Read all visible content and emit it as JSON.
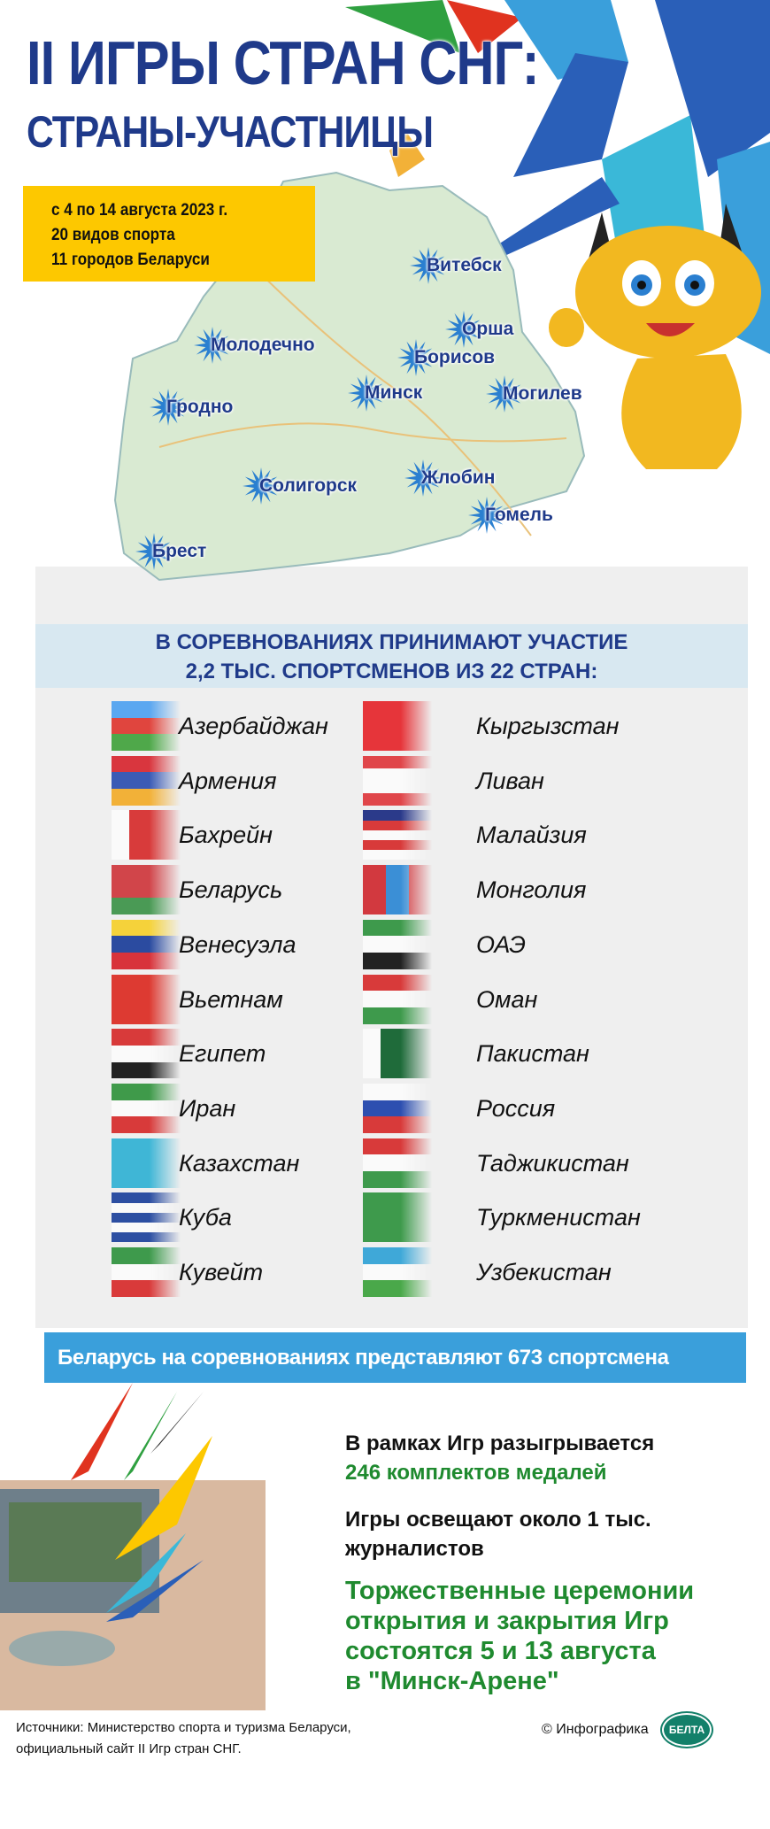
{
  "header": {
    "title_line1": "II ИГРЫ СТРАН СНГ:",
    "title_line2": "СТРАНЫ-УЧАСТНИЦЫ"
  },
  "info_box": {
    "dates": "с 4 по 14 августа 2023 г.",
    "sports": "20 видов спорта",
    "cities": "11 городов Беларуси"
  },
  "map": {
    "cities": [
      "Витебск",
      "Орша",
      "Молодечно",
      "Борисов",
      "Минск",
      "Могилев",
      "Гродно",
      "Солигорск",
      "Жлобин",
      "Гомель",
      "Брест"
    ]
  },
  "participants": {
    "heading_line1": "В СОРЕВНОВАНИЯХ ПРИНИМАЮТ УЧАСТИЕ",
    "heading_line2": "2,2 ТЫС. СПОРТСМЕНОВ  ИЗ 22 СТРАН:",
    "countries": [
      {
        "name": "Азербайджан",
        "dir": "column",
        "colors": [
          "#5aa7f0",
          "#e0453e",
          "#4fa84a"
        ]
      },
      {
        "name": "Армения",
        "dir": "column",
        "colors": [
          "#d9363e",
          "#3b5bb5",
          "#f2b138"
        ]
      },
      {
        "name": "Бахрейн",
        "dir": "row",
        "colors": [
          "#fafafa",
          "#d83b3b",
          "#d83b3b",
          "#d83b3b"
        ]
      },
      {
        "name": "Беларусь",
        "dir": "column",
        "colors": [
          "#d1454a",
          "#d1454a",
          "#4a9a55"
        ]
      },
      {
        "name": "Венесуэла",
        "dir": "column",
        "colors": [
          "#f5d23a",
          "#2b4ba0",
          "#d8333b"
        ]
      },
      {
        "name": "Вьетнам",
        "dir": "column",
        "colors": [
          "#dd3a32"
        ]
      },
      {
        "name": "Египет",
        "dir": "column",
        "colors": [
          "#d83a3a",
          "#fafafa",
          "#222"
        ]
      },
      {
        "name": "Иран",
        "dir": "column",
        "colors": [
          "#3f9a4a",
          "#fafafa",
          "#d83a3a"
        ]
      },
      {
        "name": "Казахстан",
        "dir": "column",
        "colors": [
          "#3fb6d6"
        ]
      },
      {
        "name": "Куба",
        "dir": "column",
        "colors": [
          "#2d4fa2",
          "#fafafa",
          "#2d4fa2",
          "#fafafa",
          "#2d4fa2"
        ]
      },
      {
        "name": "Кувейт",
        "dir": "column",
        "colors": [
          "#3e9a4c",
          "#fafafa",
          "#d93a3a"
        ]
      },
      {
        "name": "Кыргызстан",
        "dir": "column",
        "colors": [
          "#e6353a"
        ]
      },
      {
        "name": "Ливан",
        "dir": "column",
        "colors": [
          "#e0464a",
          "#fafafa",
          "#fafafa",
          "#e0464a"
        ]
      },
      {
        "name": "Малайзия",
        "dir": "column",
        "colors": [
          "#2b3a8a",
          "#d83a3a",
          "#fafafa",
          "#d83a3a",
          "#fafafa"
        ]
      },
      {
        "name": "Монголия",
        "dir": "row",
        "colors": [
          "#d2393f",
          "#3b8fd6",
          "#d2393f"
        ]
      },
      {
        "name": "ОАЭ",
        "dir": "column",
        "colors": [
          "#3e9a4c",
          "#fafafa",
          "#222"
        ]
      },
      {
        "name": "Оман",
        "dir": "column",
        "colors": [
          "#d83a3a",
          "#fafafa",
          "#3e9a4c"
        ]
      },
      {
        "name": "Пакистан",
        "dir": "row",
        "colors": [
          "#fafafa",
          "#1f6b3a",
          "#1f6b3a",
          "#1f6b3a"
        ]
      },
      {
        "name": "Россия",
        "dir": "column",
        "colors": [
          "#fafafa",
          "#2d4fb0",
          "#d83a3a"
        ]
      },
      {
        "name": "Таджикистан",
        "dir": "column",
        "colors": [
          "#d83a3a",
          "#fafafa",
          "#3e9a4c"
        ]
      },
      {
        "name": "Туркменистан",
        "dir": "column",
        "colors": [
          "#3e9a4c"
        ]
      },
      {
        "name": "Узбекистан",
        "dir": "column",
        "colors": [
          "#3fa8d8",
          "#fafafa",
          "#4aa84a"
        ]
      }
    ]
  },
  "belarus_bar": "Беларусь на соревнованиях представляют 673 спортсмена",
  "facts": {
    "medals_line1": "В рамках Игр разыгрывается",
    "medals_line2": "246 комплектов медалей",
    "press_line1": "Игры освещают около 1 тыс.",
    "press_line2": "журналистов",
    "ceremony": [
      "Торжественные церемонии",
      "открытия и закрытия Игр",
      "состоятся 5 и 13 августа",
      "в \"Минск-Арене\""
    ]
  },
  "footer": {
    "sources_line1": "Источники: Министерство спорта и туризма Беларуси,",
    "sources_line2": "официальный сайт II Игр стран СНГ.",
    "copyright": "© Инфографика",
    "logo": "БЕЛТА"
  },
  "colors": {
    "title": "#1f3a8a",
    "yellow": "#fdc800",
    "bar_blue": "#3a9fdb",
    "green": "#1f8a2f"
  }
}
